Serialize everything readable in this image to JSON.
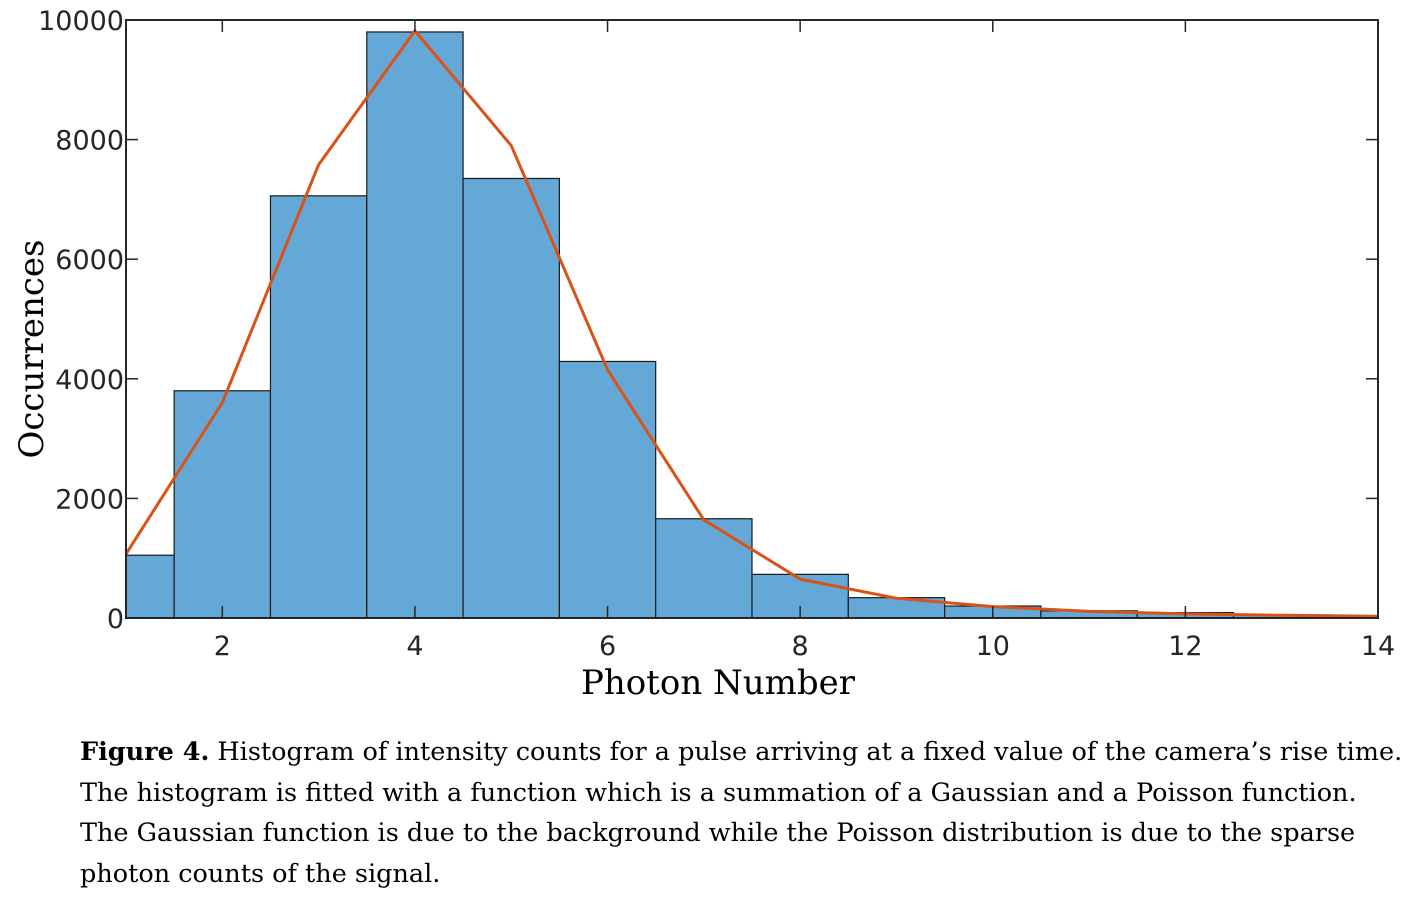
{
  "chart_data": {
    "type": "bar",
    "title": "",
    "xlabel": "Photon Number",
    "ylabel": "Occurrences",
    "xlim": [
      1,
      14
    ],
    "ylim": [
      0,
      10000
    ],
    "xticks": [
      2,
      4,
      6,
      8,
      10,
      12,
      14
    ],
    "yticks": [
      0,
      2000,
      4000,
      6000,
      8000,
      10000
    ],
    "bar_color": "#64a8d7",
    "line_color": "#d95319",
    "bars": [
      {
        "x": 1,
        "value": 1050
      },
      {
        "x": 2,
        "value": 3800
      },
      {
        "x": 3,
        "value": 7060
      },
      {
        "x": 4,
        "value": 9800
      },
      {
        "x": 5,
        "value": 7350
      },
      {
        "x": 6,
        "value": 4290
      },
      {
        "x": 7,
        "value": 1660
      },
      {
        "x": 8,
        "value": 730
      },
      {
        "x": 9,
        "value": 340
      },
      {
        "x": 10,
        "value": 200
      },
      {
        "x": 11,
        "value": 120
      },
      {
        "x": 12,
        "value": 90
      },
      {
        "x": 13,
        "value": 50
      },
      {
        "x": 14,
        "value": 30
      }
    ],
    "fit": {
      "name": "Gaussian + Poisson fit",
      "x": [
        1,
        2,
        3,
        4,
        5,
        6,
        7,
        8,
        9,
        10,
        11,
        12,
        13,
        14
      ],
      "y": [
        1070,
        3600,
        7580,
        9820,
        7900,
        4150,
        1640,
        650,
        330,
        190,
        110,
        70,
        45,
        30
      ]
    }
  },
  "caption": {
    "label": "Figure 4.",
    "line1": " Histogram of intensity counts for a pulse arriving at a fixed value of the camera’s rise time.",
    "line2": "The histogram is fitted with a function which is a summation of a Gaussian and a Poisson function.",
    "line3": "The Gaussian function is due to the background while the Poisson distribution is due to the sparse",
    "line4": "photon counts of the signal."
  }
}
